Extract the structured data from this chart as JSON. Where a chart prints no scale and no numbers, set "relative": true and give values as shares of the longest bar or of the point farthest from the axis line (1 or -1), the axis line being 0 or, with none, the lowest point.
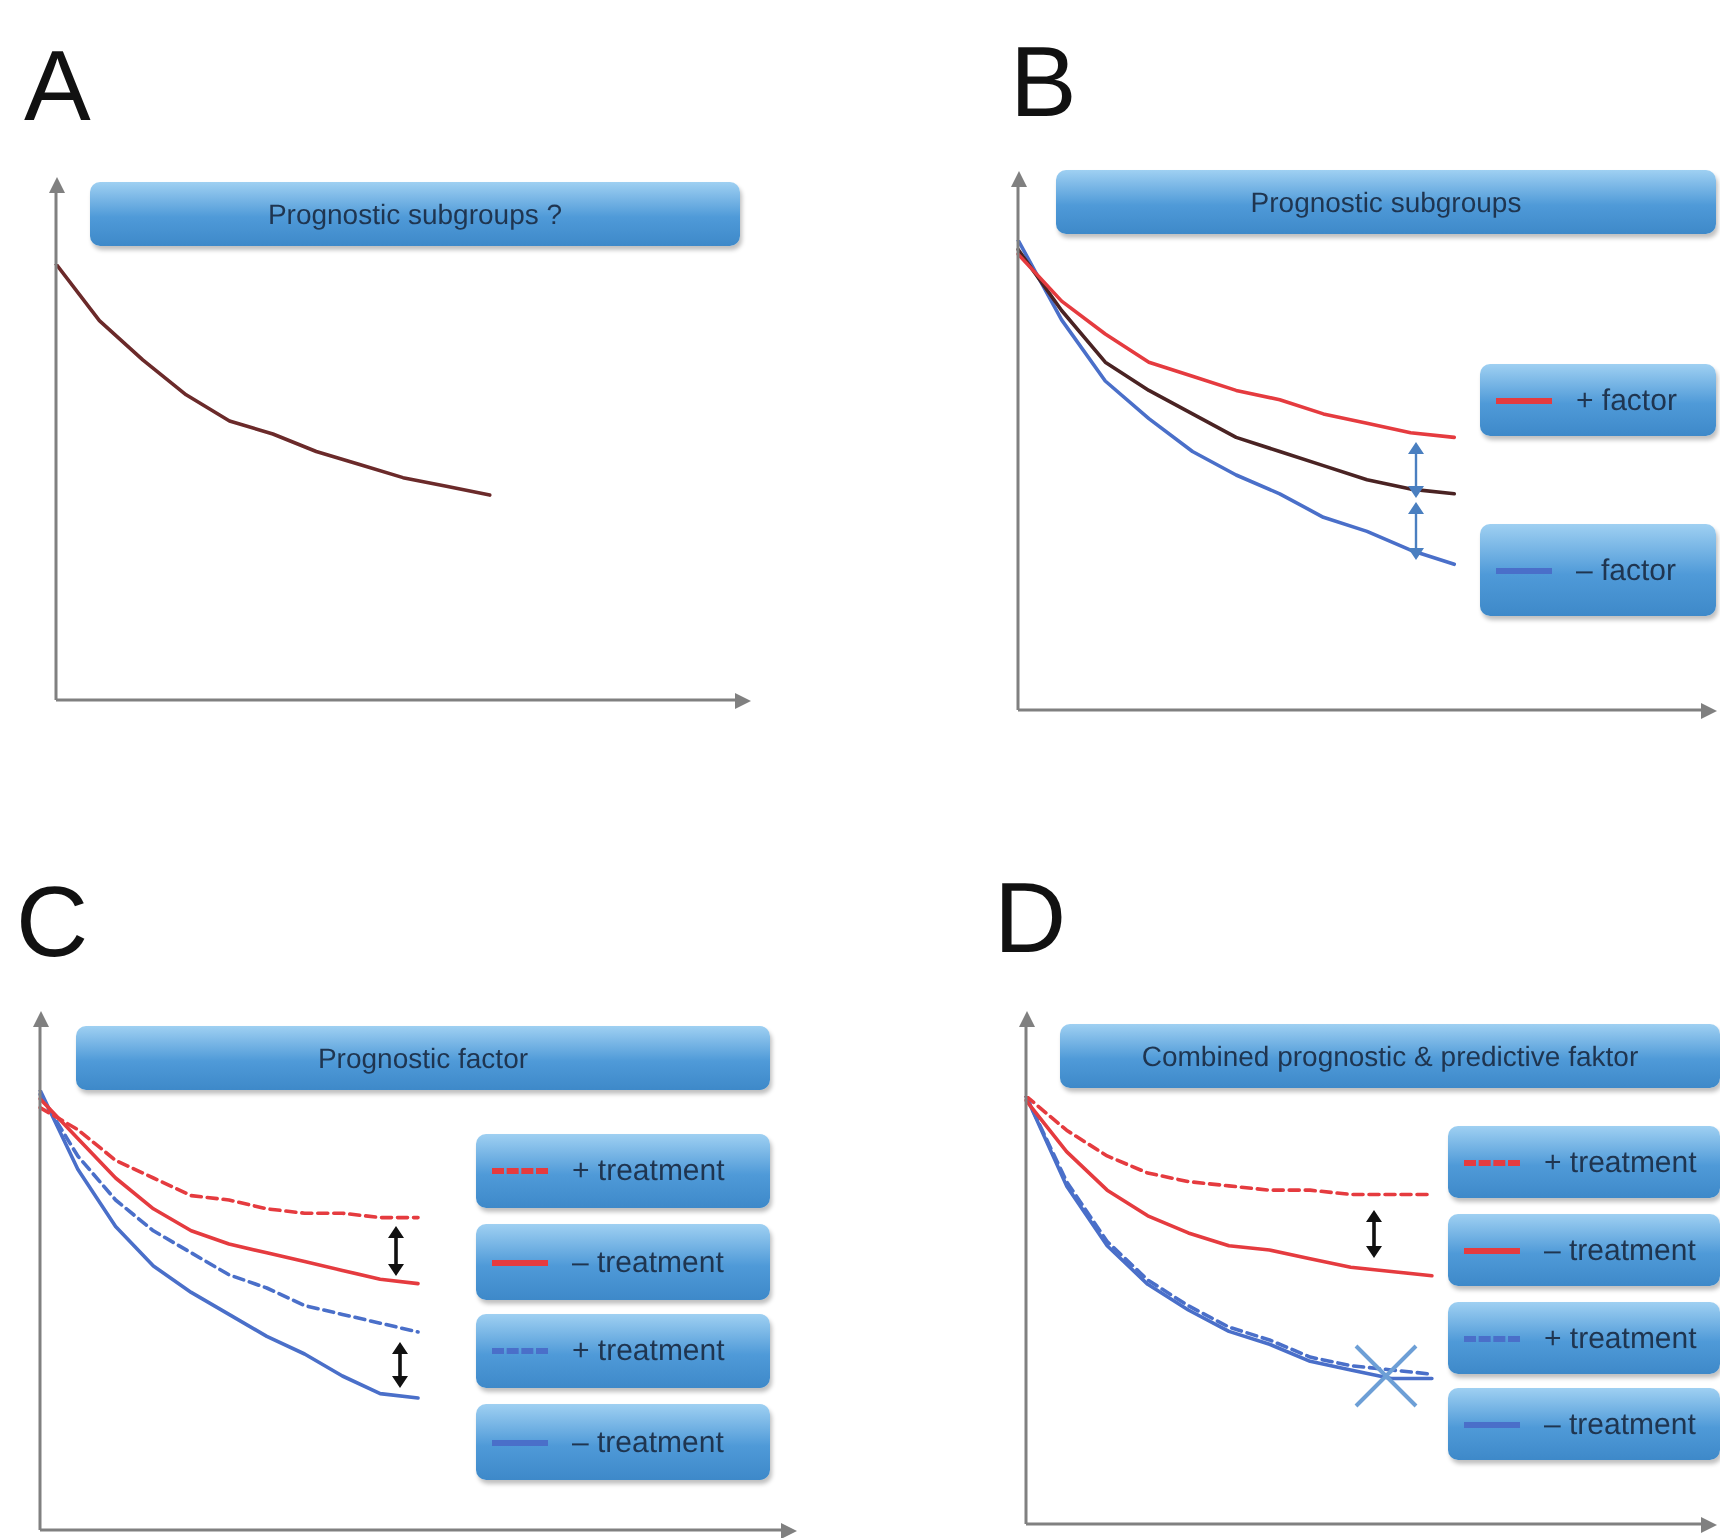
{
  "chart_data": [
    {
      "type": "line",
      "title": "A",
      "subtitle": "Prognostic subgroups ?",
      "relative": true,
      "categories": [
        null,
        null,
        null,
        null,
        null,
        null,
        null,
        null,
        null,
        null,
        null,
        null,
        null,
        null,
        null,
        null,
        null
      ],
      "series": [
        {
          "color": "#6b2a2a",
          "values": [
            1,
            0.87,
            0.78,
            0.7,
            0.64,
            0.61,
            0.57,
            0.54,
            0.51,
            0.49,
            0.47,
            null,
            null,
            null,
            null,
            null,
            null
          ]
        }
      ]
    },
    {
      "type": "line",
      "title": "B",
      "subtitle": "Prognostic subgroups",
      "relative": true,
      "legend": "right",
      "categories": [
        null,
        null,
        null,
        null,
        null,
        null,
        null,
        null,
        null,
        null,
        null,
        null,
        null,
        null,
        null,
        null,
        null
      ],
      "series": [
        {
          "name": "+ factor",
          "color": "#e53b3f",
          "values": [
            0.97,
            0.87,
            0.8,
            0.74,
            0.71,
            0.68,
            0.66,
            0.63,
            0.61,
            0.59,
            0.58,
            null,
            null,
            null,
            null,
            null,
            null
          ]
        },
        {
          "color": "#4a2323",
          "values": [
            0.98,
            0.85,
            0.74,
            0.68,
            0.63,
            0.58,
            0.55,
            0.52,
            0.49,
            0.47,
            0.46,
            null,
            null,
            null,
            null,
            null,
            null
          ]
        },
        {
          "name": "– factor",
          "color": "#4a6fc9",
          "values": [
            1,
            0.83,
            0.7,
            0.62,
            0.55,
            0.5,
            0.46,
            0.41,
            0.38,
            0.34,
            0.31,
            null,
            null,
            null,
            null,
            null,
            null
          ]
        }
      ]
    },
    {
      "type": "line",
      "title": "C",
      "subtitle": "Prognostic factor",
      "relative": true,
      "legend": "right",
      "categories": [
        null,
        null,
        null,
        null,
        null,
        null,
        null,
        null,
        null,
        null,
        null,
        null,
        null,
        null,
        null,
        null,
        null,
        null,
        null,
        null,
        null
      ],
      "series": [
        {
          "name": "+ treatment",
          "color": "#e53b3f",
          "line_style": "dashed",
          "values": [
            0.96,
            0.91,
            0.84,
            0.8,
            0.76,
            0.75,
            0.73,
            0.72,
            0.72,
            0.71,
            0.71,
            null,
            null,
            null,
            null,
            null,
            null,
            null,
            null,
            null,
            null
          ]
        },
        {
          "name": "– treatment",
          "color": "#e53b3f",
          "line_style": "solid",
          "values": [
            0.98,
            0.89,
            0.8,
            0.73,
            0.68,
            0.65,
            0.63,
            0.61,
            0.59,
            0.57,
            0.56,
            null,
            null,
            null,
            null,
            null,
            null,
            null,
            null,
            null,
            null
          ]
        },
        {
          "name": "+ treatment",
          "color": "#4a6fc9",
          "line_style": "dashed",
          "values": [
            0.99,
            0.85,
            0.75,
            0.68,
            0.63,
            0.58,
            0.55,
            0.51,
            0.49,
            0.47,
            0.45,
            null,
            null,
            null,
            null,
            null,
            null,
            null,
            null,
            null,
            null
          ]
        },
        {
          "name": "– treatment",
          "color": "#4a6fc9",
          "line_style": "solid",
          "values": [
            1,
            0.82,
            0.69,
            0.6,
            0.54,
            0.49,
            0.44,
            0.4,
            0.35,
            0.31,
            0.3,
            null,
            null,
            null,
            null,
            null,
            null,
            null,
            null,
            null,
            null
          ]
        }
      ]
    },
    {
      "type": "line",
      "title": "D",
      "subtitle": "Combined prognostic  &  predictive faktor",
      "relative": true,
      "legend": "right",
      "categories": [
        null,
        null,
        null,
        null,
        null,
        null,
        null,
        null,
        null,
        null,
        null,
        null,
        null,
        null,
        null,
        null,
        null,
        null
      ],
      "series": [
        {
          "name": "+ treatment",
          "color": "#e53b3f",
          "line_style": "dashed",
          "values": [
            1,
            0.92,
            0.86,
            0.82,
            0.8,
            0.79,
            0.78,
            0.78,
            0.77,
            0.77,
            0.77,
            null,
            null,
            null,
            null,
            null,
            null,
            null
          ]
        },
        {
          "name": "– treatment",
          "color": "#e53b3f",
          "line_style": "solid",
          "values": [
            0.99,
            0.87,
            0.78,
            0.72,
            0.68,
            0.65,
            0.64,
            0.62,
            0.6,
            0.59,
            0.58,
            null,
            null,
            null,
            null,
            null,
            null,
            null
          ]
        },
        {
          "name": "+ treatment",
          "color": "#4a6fc9",
          "line_style": "dashed",
          "values": [
            1,
            0.8,
            0.66,
            0.57,
            0.51,
            0.46,
            0.43,
            0.39,
            0.37,
            0.36,
            0.35,
            null,
            null,
            null,
            null,
            null,
            null,
            null
          ]
        },
        {
          "name": "– treatment",
          "color": "#4a6fc9",
          "line_style": "solid",
          "values": [
            1,
            0.79,
            0.65,
            0.56,
            0.5,
            0.45,
            0.42,
            0.38,
            0.36,
            0.34,
            0.34,
            null,
            null,
            null,
            null,
            null,
            null,
            null
          ]
        }
      ]
    }
  ]
}
